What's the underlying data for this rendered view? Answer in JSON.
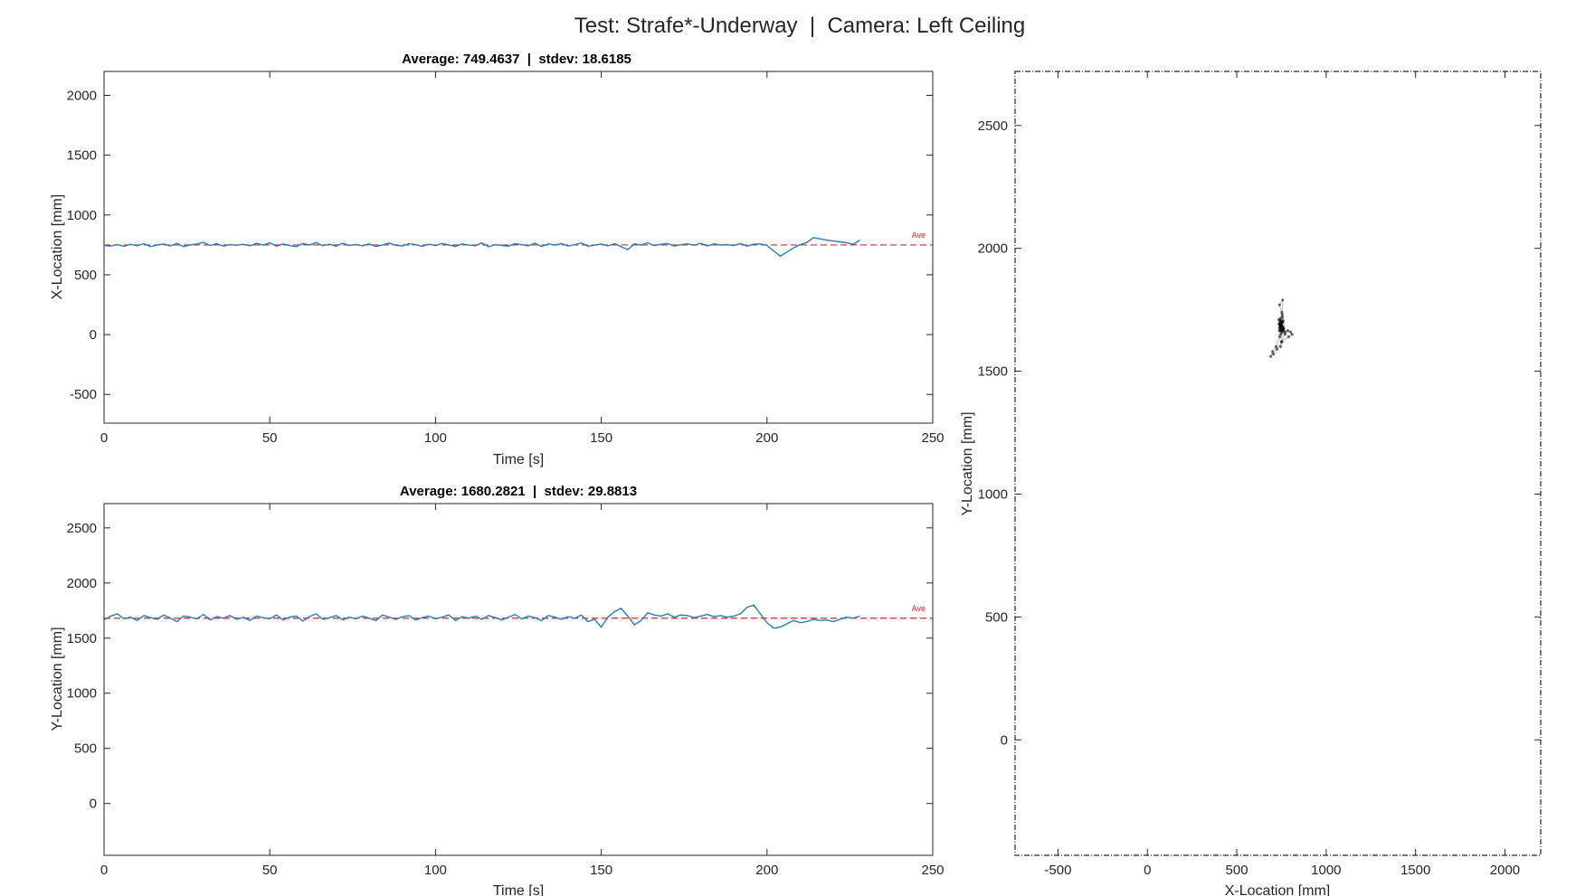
{
  "figure_title": "Test: Strafe*-Underway  |  Camera: Left Ceiling",
  "colors": {
    "series": "#2b7bb9",
    "average": "#d62728",
    "trajectory": "#000000",
    "axes": "#262626"
  },
  "chart_data": [
    {
      "type": "line",
      "title": "Average: 749.4637  |  stdev: 18.6185",
      "xlabel": "Time [s]",
      "ylabel": "X-Location [mm]",
      "xlim": [
        0,
        250
      ],
      "ylim": [
        -740,
        2200
      ],
      "xticks": [
        0,
        50,
        100,
        150,
        200,
        250
      ],
      "yticks": [
        -500,
        0,
        500,
        1000,
        1500,
        2000
      ],
      "grid": false,
      "series": [
        {
          "x": [
            0,
            2,
            4,
            6,
            8,
            10,
            12,
            14,
            16,
            18,
            20,
            22,
            24,
            26,
            28,
            30,
            32,
            34,
            36,
            38,
            40,
            42,
            44,
            46,
            48,
            50,
            52,
            54,
            56,
            58,
            60,
            62,
            64,
            66,
            68,
            70,
            72,
            74,
            76,
            78,
            80,
            82,
            84,
            86,
            88,
            90,
            92,
            94,
            96,
            98,
            100,
            102,
            104,
            106,
            108,
            110,
            112,
            114,
            116,
            118,
            120,
            122,
            124,
            126,
            128,
            130,
            132,
            134,
            136,
            138,
            140,
            142,
            144,
            146,
            148,
            150,
            152,
            154,
            156,
            158,
            160,
            162,
            164,
            166,
            168,
            170,
            172,
            174,
            176,
            178,
            180,
            182,
            184,
            186,
            188,
            190,
            192,
            194,
            196,
            198,
            200,
            202,
            204,
            206,
            208,
            210,
            212,
            214,
            216,
            218,
            220,
            222,
            224,
            226,
            228
          ],
          "y": [
            745,
            740,
            752,
            738,
            755,
            742,
            760,
            735,
            748,
            757,
            741,
            762,
            736,
            750,
            758,
            771,
            745,
            760,
            739,
            752,
            747,
            755,
            742,
            763,
            748,
            768,
            740,
            757,
            744,
            735,
            761,
            749,
            770,
            743,
            756,
            738,
            764,
            745,
            753,
            742,
            758,
            736,
            750,
            765,
            747,
            741,
            760,
            752,
            738,
            756,
            744,
            762,
            750,
            737,
            759,
            748,
            743,
            766,
            734,
            752,
            745,
            739,
            760,
            751,
            742,
            764,
            737,
            758,
            749,
            761,
            740,
            753,
            766,
            739,
            748,
            757,
            742,
            760,
            735,
            710,
            758,
            749,
            768,
            744,
            755,
            762,
            740,
            751,
            759,
            746,
            763,
            741,
            757,
            749,
            752,
            745,
            761,
            740,
            756,
            758,
            745,
            700,
            655,
            690,
            725,
            752,
            770,
            810,
            800,
            790,
            782,
            775,
            768,
            755,
            790
          ]
        }
      ],
      "average": 749.4637,
      "average_label": "Ave"
    },
    {
      "type": "line",
      "title": "Average: 1680.2821  |  stdev: 29.8813",
      "xlabel": "Time [s]",
      "ylabel": "Y-Location [mm]",
      "xlim": [
        0,
        250
      ],
      "ylim": [
        -470,
        2720
      ],
      "xticks": [
        0,
        50,
        100,
        150,
        200,
        250
      ],
      "yticks": [
        0,
        500,
        1000,
        1500,
        2000,
        2500
      ],
      "grid": false,
      "series": [
        {
          "x": [
            0,
            2,
            4,
            6,
            8,
            10,
            12,
            14,
            16,
            18,
            20,
            22,
            24,
            26,
            28,
            30,
            32,
            34,
            36,
            38,
            40,
            42,
            44,
            46,
            48,
            50,
            52,
            54,
            56,
            58,
            60,
            62,
            64,
            66,
            68,
            70,
            72,
            74,
            76,
            78,
            80,
            82,
            84,
            86,
            88,
            90,
            92,
            94,
            96,
            98,
            100,
            102,
            104,
            106,
            108,
            110,
            112,
            114,
            116,
            118,
            120,
            122,
            124,
            126,
            128,
            130,
            132,
            134,
            136,
            138,
            140,
            142,
            144,
            146,
            148,
            150,
            152,
            154,
            156,
            158,
            160,
            162,
            164,
            166,
            168,
            170,
            172,
            174,
            176,
            178,
            180,
            182,
            184,
            186,
            188,
            190,
            192,
            194,
            196,
            198,
            200,
            202,
            204,
            206,
            208,
            210,
            212,
            214,
            216,
            218,
            220,
            222,
            224,
            226,
            228
          ],
          "y": [
            1665,
            1700,
            1720,
            1675,
            1690,
            1660,
            1705,
            1685,
            1670,
            1710,
            1680,
            1650,
            1700,
            1690,
            1675,
            1715,
            1665,
            1695,
            1680,
            1705,
            1670,
            1690,
            1660,
            1700,
            1685,
            1675,
            1710,
            1665,
            1690,
            1700,
            1655,
            1695,
            1720,
            1670,
            1685,
            1705,
            1665,
            1690,
            1675,
            1700,
            1680,
            1660,
            1710,
            1690,
            1670,
            1695,
            1705,
            1665,
            1685,
            1700,
            1675,
            1690,
            1710,
            1660,
            1695,
            1680,
            1700,
            1670,
            1705,
            1685,
            1665,
            1690,
            1715,
            1675,
            1700,
            1685,
            1660,
            1705,
            1690,
            1670,
            1695,
            1680,
            1710,
            1650,
            1670,
            1600,
            1690,
            1740,
            1770,
            1700,
            1620,
            1660,
            1730,
            1710,
            1700,
            1720,
            1690,
            1710,
            1705,
            1685,
            1700,
            1715,
            1695,
            1705,
            1690,
            1700,
            1720,
            1780,
            1800,
            1720,
            1640,
            1590,
            1600,
            1630,
            1660,
            1640,
            1650,
            1670,
            1660,
            1665,
            1650,
            1670,
            1690,
            1680,
            1700
          ]
        }
      ],
      "average": 1680.2821,
      "average_label": "Ave"
    },
    {
      "type": "scatter",
      "title": "",
      "xlabel": "X-Location [mm]",
      "ylabel": "Y-Location [mm]",
      "xlim": [
        -740,
        2200
      ],
      "ylim": [
        -470,
        2720
      ],
      "xticks": [
        -500,
        0,
        500,
        1000,
        1500,
        2000
      ],
      "yticks": [
        0,
        500,
        1000,
        1500,
        2000,
        2500
      ],
      "grid": false,
      "series": [
        {
          "x": [
            740,
            748,
            755,
            745,
            738,
            752,
            760,
            742,
            750,
            735,
            758,
            746,
            753,
            740,
            762,
            744,
            750,
            737,
            755,
            748,
            760,
            743,
            752,
            739,
            757,
            750,
            745,
            770,
            755,
            740,
            720,
            700,
            690,
            705,
            725,
            752,
            790,
            810,
            800,
            785,
            770,
            760,
            748,
            742,
            756,
            738,
            751,
            745,
            758,
            741,
            749,
            760,
            744,
            752,
            740,
            748
          ],
          "y": [
            1665,
            1700,
            1720,
            1675,
            1690,
            1660,
            1705,
            1685,
            1670,
            1710,
            1680,
            1650,
            1700,
            1690,
            1675,
            1715,
            1665,
            1695,
            1680,
            1705,
            1670,
            1690,
            1740,
            1770,
            1790,
            1620,
            1600,
            1660,
            1730,
            1640,
            1600,
            1580,
            1560,
            1570,
            1590,
            1620,
            1640,
            1650,
            1660,
            1665,
            1650,
            1670,
            1690,
            1680,
            1700,
            1675,
            1685,
            1695,
            1660,
            1705,
            1690,
            1670,
            1680,
            1700,
            1665,
            1685
          ]
        }
      ]
    }
  ]
}
